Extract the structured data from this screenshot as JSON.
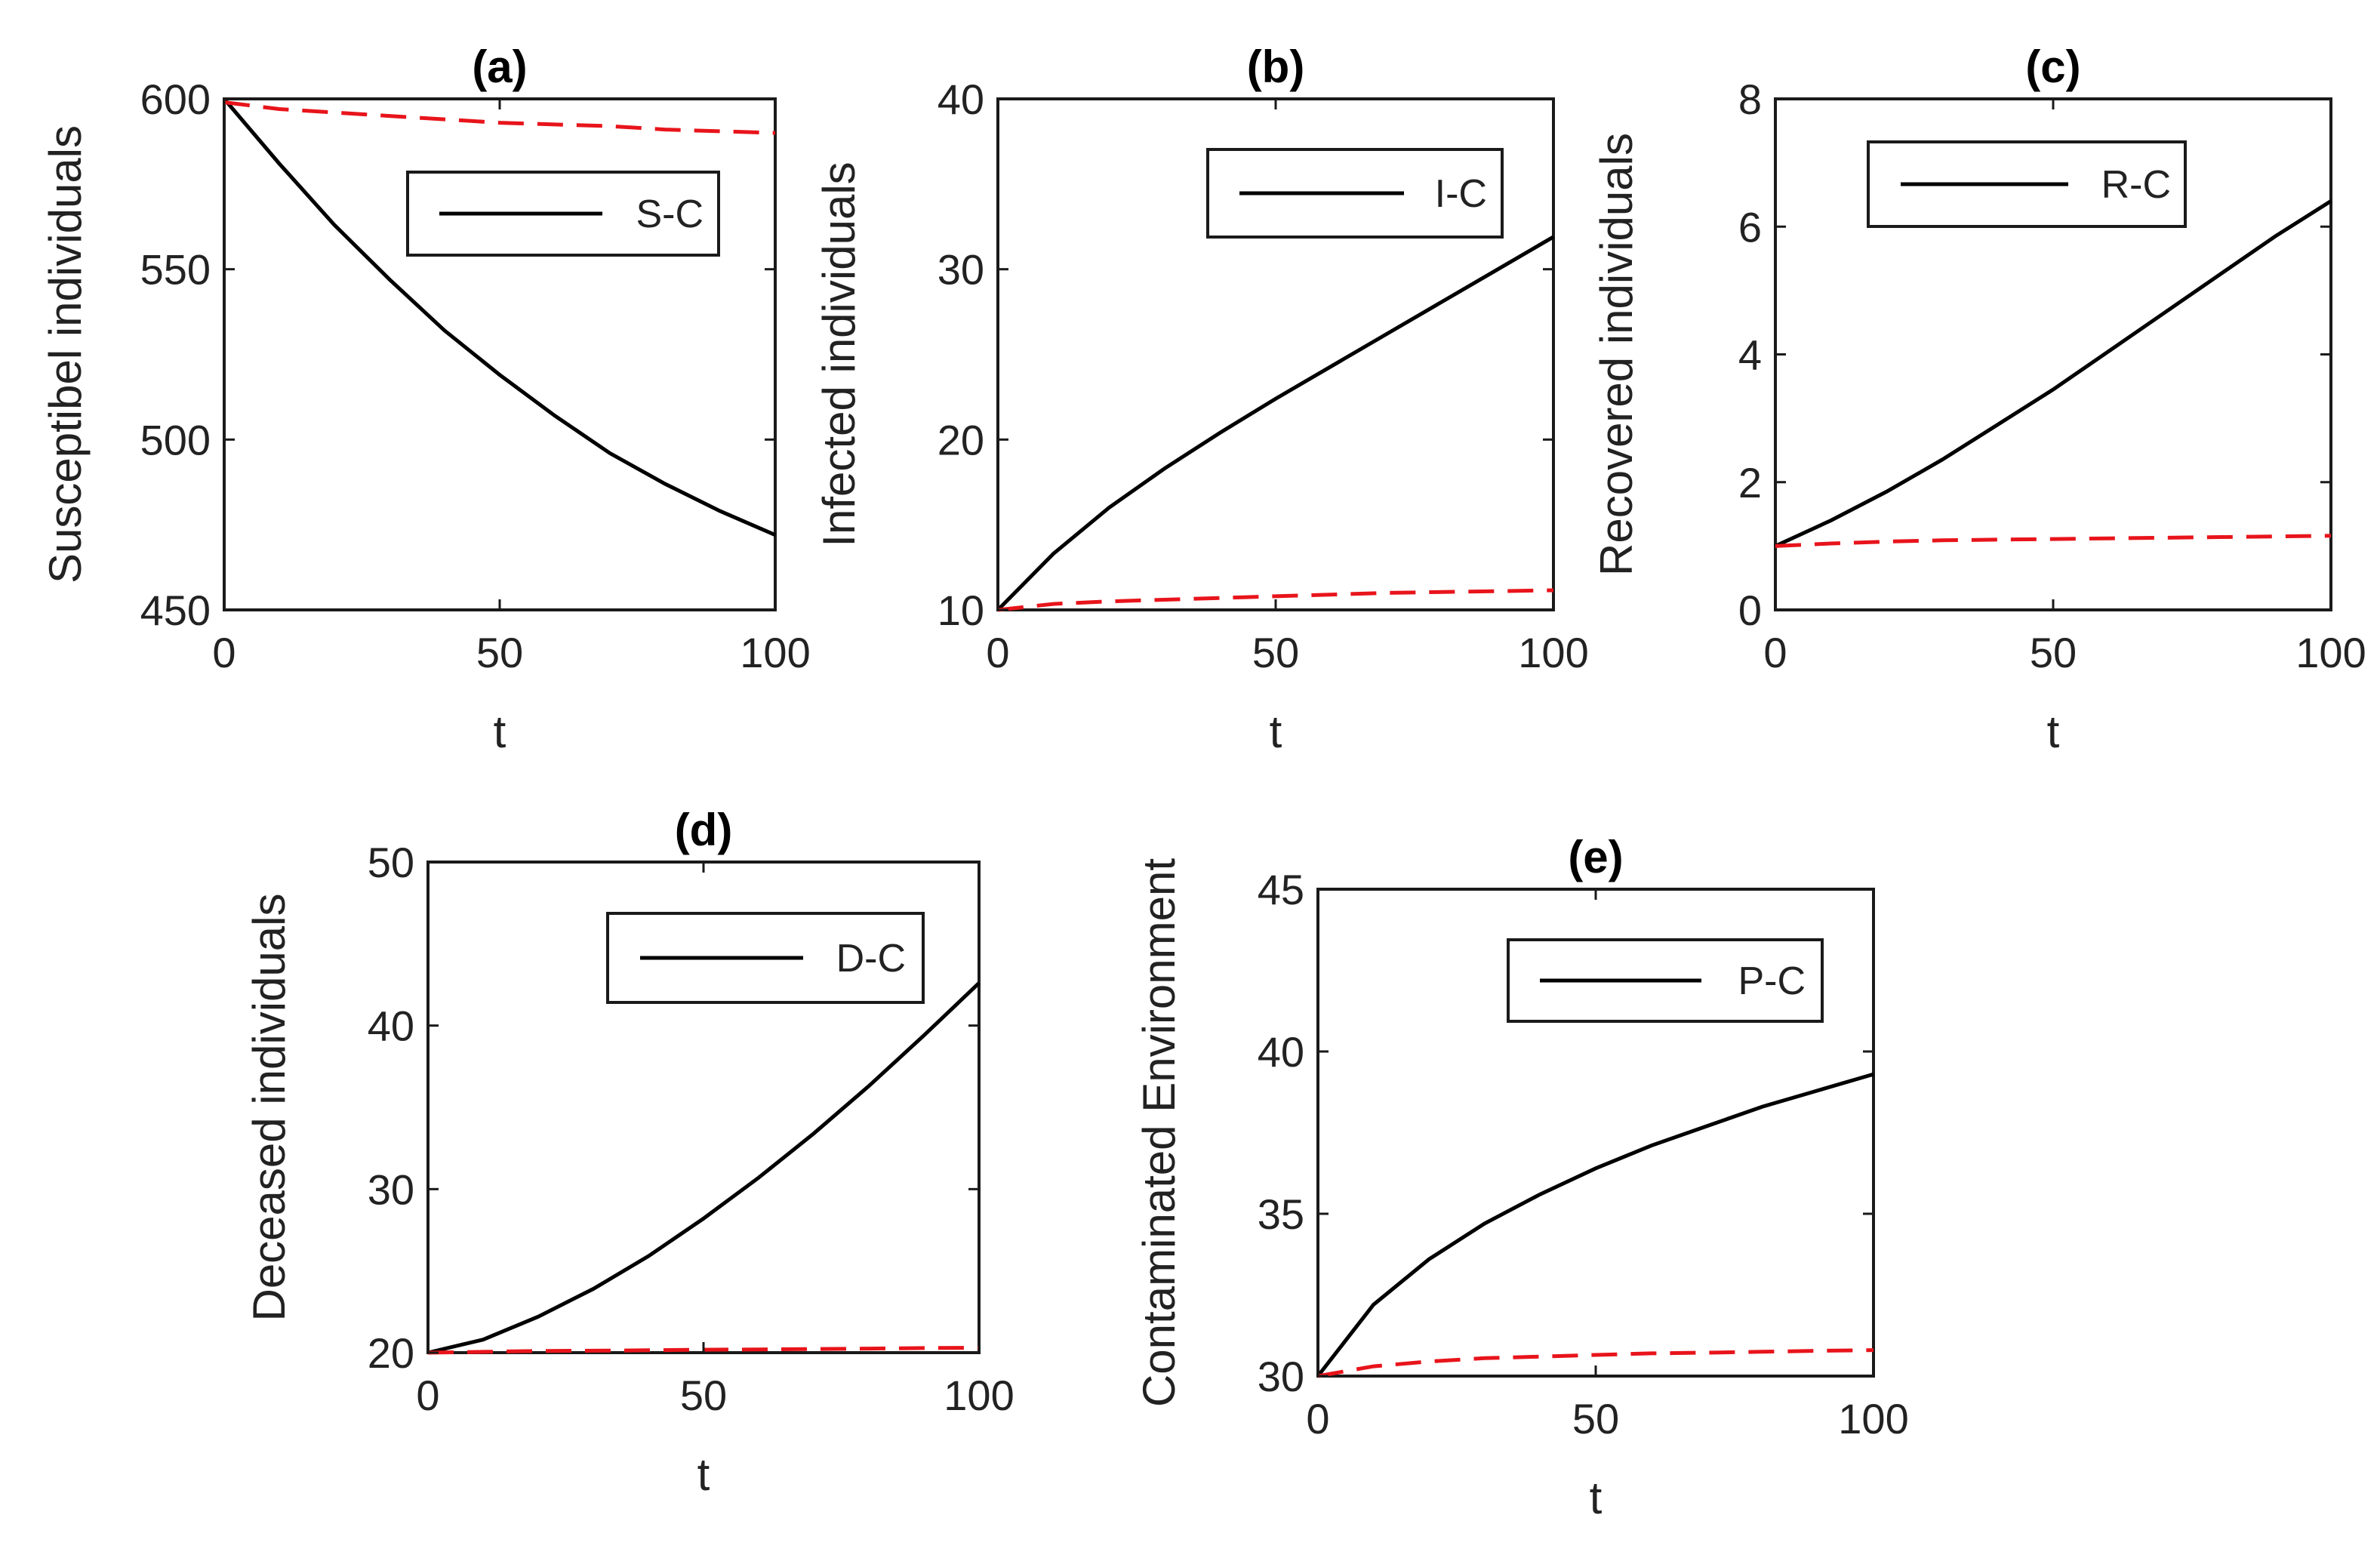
{
  "colors": {
    "solid_series": "#000000",
    "dashed_series": "#e8141b",
    "axes": "#1a1a1a"
  },
  "chart_data": [
    {
      "type": "line",
      "title": "(a)",
      "xlabel": "t",
      "ylabel": "Susceptibel individuals",
      "xlim": [
        0,
        100
      ],
      "ylim": [
        450,
        600
      ],
      "xticks": [
        0,
        50,
        100
      ],
      "yticks": [
        450,
        500,
        550,
        600
      ],
      "legend": {
        "label": "S-C",
        "placement": "top-right"
      },
      "x": [
        0,
        10,
        20,
        30,
        40,
        50,
        60,
        70,
        80,
        90,
        100
      ],
      "series": [
        {
          "name": "S-C",
          "style": "solid",
          "values": [
            600,
            581,
            563,
            547,
            532,
            519,
            507,
            496,
            487,
            479,
            472
          ]
        },
        {
          "name": "",
          "style": "dashed",
          "values": [
            599,
            597,
            596,
            595,
            594,
            593,
            592.5,
            592,
            591,
            590.5,
            590
          ]
        }
      ]
    },
    {
      "type": "line",
      "title": "(b)",
      "xlabel": "t",
      "ylabel": "Infected individuals",
      "xlim": [
        0,
        100
      ],
      "ylim": [
        10,
        40
      ],
      "xticks": [
        0,
        50,
        100
      ],
      "yticks": [
        10,
        20,
        30,
        40
      ],
      "legend": {
        "label": "I-C",
        "placement": "top-right"
      },
      "x": [
        0,
        10,
        20,
        30,
        40,
        50,
        60,
        70,
        80,
        90,
        100
      ],
      "series": [
        {
          "name": "I-C",
          "style": "solid",
          "values": [
            10,
            13.3,
            16.0,
            18.3,
            20.4,
            22.4,
            24.3,
            26.2,
            28.1,
            30.0,
            31.9
          ]
        },
        {
          "name": "",
          "style": "dashed",
          "values": [
            10,
            10.35,
            10.5,
            10.6,
            10.7,
            10.8,
            10.9,
            11.0,
            11.05,
            11.1,
            11.15
          ]
        }
      ]
    },
    {
      "type": "line",
      "title": "(c)",
      "xlabel": "t",
      "ylabel": "Recovered individuals",
      "xlim": [
        0,
        100
      ],
      "ylim": [
        0,
        8
      ],
      "xticks": [
        0,
        50,
        100
      ],
      "yticks": [
        0,
        2,
        4,
        6,
        8
      ],
      "legend": {
        "label": "R-C",
        "placement": "top-right"
      },
      "x": [
        0,
        10,
        20,
        30,
        40,
        50,
        60,
        70,
        80,
        90,
        100
      ],
      "series": [
        {
          "name": "R-C",
          "style": "solid",
          "values": [
            1,
            1.4,
            1.85,
            2.35,
            2.9,
            3.45,
            4.05,
            4.65,
            5.25,
            5.85,
            6.4
          ]
        },
        {
          "name": "",
          "style": "dashed",
          "values": [
            1,
            1.04,
            1.07,
            1.09,
            1.1,
            1.11,
            1.12,
            1.13,
            1.14,
            1.15,
            1.16
          ]
        }
      ]
    },
    {
      "type": "line",
      "title": "(d)",
      "xlabel": "t",
      "ylabel": "Deceased individuals",
      "xlim": [
        0,
        100
      ],
      "ylim": [
        20,
        50
      ],
      "xticks": [
        0,
        50,
        100
      ],
      "yticks": [
        20,
        30,
        40,
        50
      ],
      "legend": {
        "label": "D-C",
        "placement": "top-right"
      },
      "x": [
        0,
        10,
        20,
        30,
        40,
        50,
        60,
        70,
        80,
        90,
        100
      ],
      "series": [
        {
          "name": "D-C",
          "style": "solid",
          "values": [
            20,
            20.8,
            22.2,
            23.9,
            25.9,
            28.2,
            30.7,
            33.4,
            36.3,
            39.4,
            42.6
          ]
        },
        {
          "name": "",
          "style": "dashed",
          "values": [
            20,
            20.05,
            20.1,
            20.12,
            20.15,
            20.18,
            20.2,
            20.22,
            20.25,
            20.28,
            20.3
          ]
        }
      ]
    },
    {
      "type": "line",
      "title": "(e)",
      "xlabel": "t",
      "ylabel": "Contaminated Environment",
      "xlim": [
        0,
        100
      ],
      "ylim": [
        30,
        45
      ],
      "xticks": [
        0,
        50,
        100
      ],
      "yticks": [
        30,
        35,
        40,
        45
      ],
      "legend": {
        "label": "P-C",
        "placement": "top-right"
      },
      "x": [
        0,
        10,
        20,
        30,
        40,
        50,
        60,
        70,
        80,
        90,
        100
      ],
      "series": [
        {
          "name": "P-C",
          "style": "solid",
          "values": [
            30,
            32.2,
            33.6,
            34.7,
            35.6,
            36.4,
            37.1,
            37.7,
            38.3,
            38.8,
            39.3
          ]
        },
        {
          "name": "",
          "style": "dashed",
          "values": [
            30,
            30.3,
            30.45,
            30.55,
            30.6,
            30.65,
            30.7,
            30.72,
            30.75,
            30.78,
            30.8
          ]
        }
      ]
    }
  ]
}
